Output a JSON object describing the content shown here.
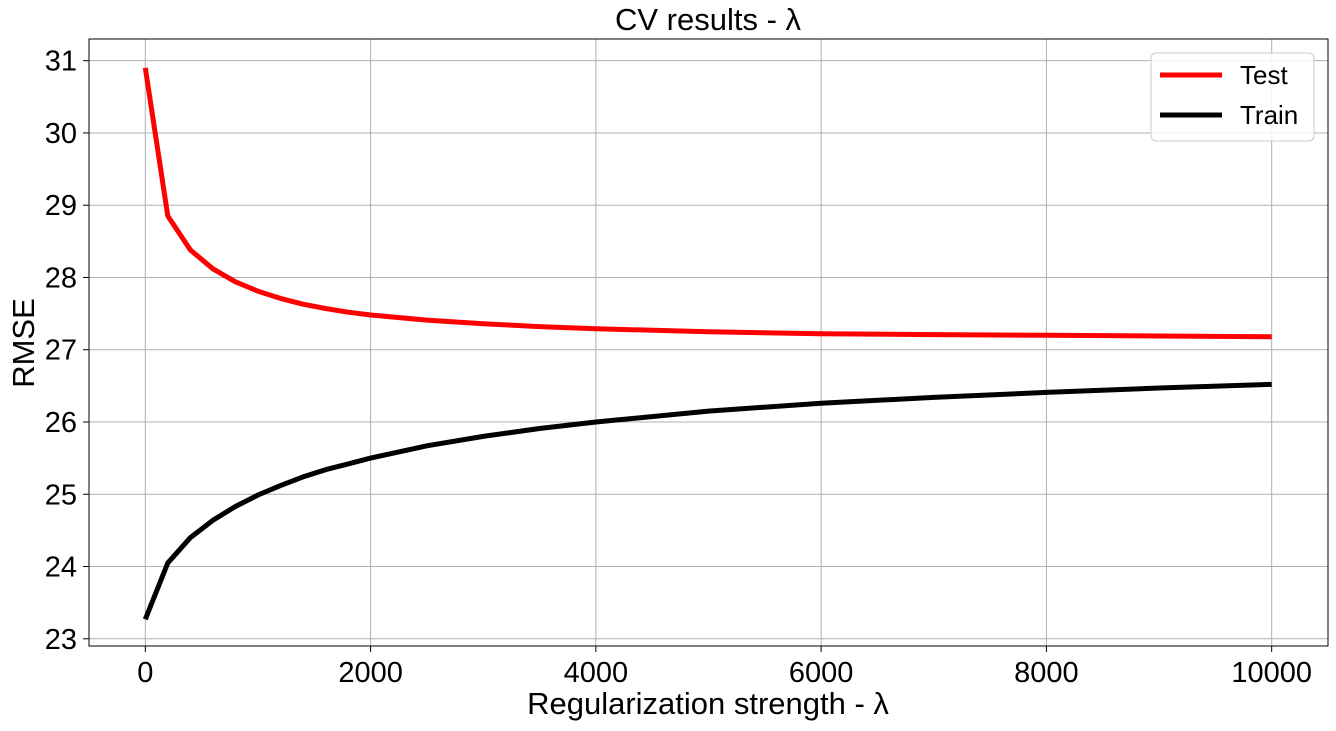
{
  "chart_data": {
    "type": "line",
    "title": "CV results - λ",
    "xlabel": "Regularization strength - λ",
    "ylabel": "RMSE",
    "xlim": [
      -500,
      10500
    ],
    "ylim": [
      22.9,
      31.3
    ],
    "xticks": [
      0,
      2000,
      4000,
      6000,
      8000,
      10000
    ],
    "xtick_labels": [
      "0",
      "2000",
      "4000",
      "6000",
      "8000",
      "10000"
    ],
    "yticks": [
      23,
      24,
      25,
      26,
      27,
      28,
      29,
      30,
      31
    ],
    "ytick_labels": [
      "23",
      "24",
      "25",
      "26",
      "27",
      "28",
      "29",
      "30",
      "31"
    ],
    "grid": true,
    "legend_position": "top-right",
    "x": [
      0,
      200,
      400,
      600,
      800,
      1000,
      1200,
      1400,
      1600,
      1800,
      2000,
      2500,
      3000,
      3500,
      4000,
      5000,
      6000,
      7000,
      8000,
      9000,
      10000
    ],
    "series": [
      {
        "name": "Test",
        "color": "#ff0000",
        "values": [
          30.9,
          28.85,
          28.38,
          28.12,
          27.94,
          27.81,
          27.71,
          27.63,
          27.57,
          27.52,
          27.48,
          27.41,
          27.36,
          27.32,
          27.29,
          27.25,
          27.22,
          27.21,
          27.2,
          27.19,
          27.18
        ]
      },
      {
        "name": "Train",
        "color": "#000000",
        "values": [
          23.27,
          24.05,
          24.4,
          24.64,
          24.83,
          24.99,
          25.12,
          25.24,
          25.34,
          25.42,
          25.5,
          25.67,
          25.8,
          25.91,
          26.0,
          26.15,
          26.26,
          26.34,
          26.41,
          26.47,
          26.52
        ]
      }
    ]
  }
}
